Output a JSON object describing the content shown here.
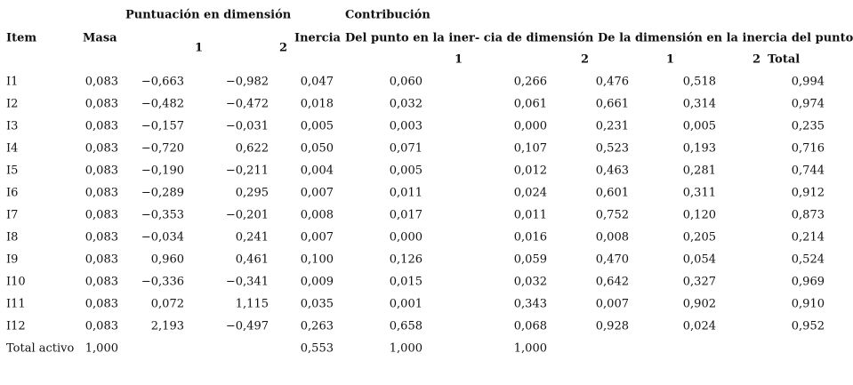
{
  "header": {
    "group_score": "Puntuación en dimensión",
    "group_contrib": "Contribución",
    "item": "Item",
    "masa": "Masa",
    "score_1": "1",
    "score_2": "2",
    "inercia": "Inercia",
    "contrib_point": "Del punto en la iner- cia de dimensión",
    "contrib_dim": "De la dimensión en la inercia del punto",
    "point_1": "1",
    "point_2": "2",
    "dim_1": "1",
    "dim_2": "2",
    "total": "Total"
  },
  "rows": [
    [
      "I1",
      "0,083",
      "−0,663",
      "−0,982",
      "0,047",
      "0,060",
      "0,266",
      "0,476",
      "0,518",
      "0,994"
    ],
    [
      "I2",
      "0,083",
      "−0,482",
      "−0,472",
      "0,018",
      "0,032",
      "0,061",
      "0,661",
      "0,314",
      "0,974"
    ],
    [
      "I3",
      "0,083",
      "−0,157",
      "−0,031",
      "0,005",
      "0,003",
      "0,000",
      "0,231",
      "0,005",
      "0,235"
    ],
    [
      "I4",
      "0,083",
      "−0,720",
      "0,622",
      "0,050",
      "0,071",
      "0,107",
      "0,523",
      "0,193",
      "0,716"
    ],
    [
      "I5",
      "0,083",
      "−0,190",
      "−0,211",
      "0,004",
      "0,005",
      "0,012",
      "0,463",
      "0,281",
      "0,744"
    ],
    [
      "I6",
      "0,083",
      "−0,289",
      "0,295",
      "0,007",
      "0,011",
      "0,024",
      "0,601",
      "0,311",
      "0,912"
    ],
    [
      "I7",
      "0,083",
      "−0,353",
      "−0,201",
      "0,008",
      "0,017",
      "0,011",
      "0,752",
      "0,120",
      "0,873"
    ],
    [
      "I8",
      "0,083",
      "−0,034",
      "0,241",
      "0,007",
      "0,000",
      "0,016",
      "0,008",
      "0,205",
      "0,214"
    ],
    [
      "I9",
      "0,083",
      "0,960",
      "0,461",
      "0,100",
      "0,126",
      "0,059",
      "0,470",
      "0,054",
      "0,524"
    ],
    [
      "I10",
      "0,083",
      "−0,336",
      "−0,341",
      "0,009",
      "0,015",
      "0,032",
      "0,642",
      "0,327",
      "0,969"
    ],
    [
      "I11",
      "0,083",
      "0,072",
      "1,115",
      "0,035",
      "0,001",
      "0,343",
      "0,007",
      "0,902",
      "0,910"
    ],
    [
      "I12",
      "0,083",
      "2,193",
      "−0,497",
      "0,263",
      "0,658",
      "0,068",
      "0,928",
      "0,024",
      "0,952"
    ]
  ],
  "total_row": {
    "label": "Total activo",
    "masa": "1,000",
    "inercia": "0,553",
    "contrib_1": "1,000",
    "contrib_2": "1,000"
  }
}
